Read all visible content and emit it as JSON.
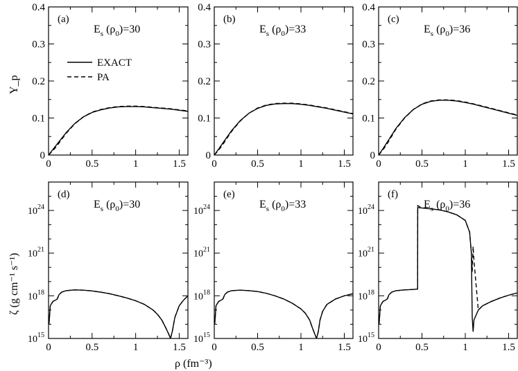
{
  "figure": {
    "xlabel": "ρ (fm⁻³)",
    "top_ylabel": "Y_p",
    "bottom_ylabel": "ζ (g cm⁻¹ s⁻¹)"
  },
  "legend": [
    {
      "name": "EXACT",
      "style": "solid"
    },
    {
      "name": "PA",
      "style": "dashed"
    }
  ],
  "colors": {
    "line": "#000000",
    "background": "#ffffff"
  },
  "chart_data": [
    {
      "panel": "(a)",
      "type": "line",
      "annotation": "Es (ρ0)=30",
      "xlim": [
        0,
        1.6
      ],
      "ylim": [
        0,
        0.4
      ],
      "yscale": "linear",
      "xticks": [
        "0",
        "0.5",
        "1",
        "1.5"
      ],
      "yticks": [
        "0",
        "0.1",
        "0.2",
        "0.3",
        "0.4"
      ],
      "series": [
        {
          "name": "EXACT",
          "x": [
            0,
            0.05,
            0.1,
            0.2,
            0.3,
            0.4,
            0.5,
            0.6,
            0.7,
            0.8,
            0.9,
            1.0,
            1.1,
            1.2,
            1.3,
            1.4,
            1.5,
            1.6
          ],
          "y": [
            0,
            0.015,
            0.03,
            0.06,
            0.085,
            0.103,
            0.115,
            0.122,
            0.127,
            0.13,
            0.131,
            0.131,
            0.13,
            0.128,
            0.126,
            0.124,
            0.121,
            0.118
          ]
        },
        {
          "name": "PA",
          "x": [
            0,
            0.05,
            0.1,
            0.2,
            0.3,
            0.4,
            0.5,
            0.6,
            0.7,
            0.8,
            0.9,
            1.0,
            1.1,
            1.2,
            1.3,
            1.4,
            1.5,
            1.6
          ],
          "y": [
            0,
            0.012,
            0.026,
            0.058,
            0.084,
            0.103,
            0.116,
            0.123,
            0.128,
            0.131,
            0.132,
            0.132,
            0.131,
            0.129,
            0.127,
            0.125,
            0.122,
            0.119
          ]
        }
      ]
    },
    {
      "panel": "(b)",
      "type": "line",
      "annotation": "Es (ρ0)=33",
      "xlim": [
        0,
        1.6
      ],
      "ylim": [
        0,
        0.4
      ],
      "yscale": "linear",
      "xticks": [
        "0",
        "0.5",
        "1",
        "1.5"
      ],
      "yticks": [
        "0",
        "0.1",
        "0.2",
        "0.3",
        "0.4"
      ],
      "series": [
        {
          "name": "EXACT",
          "x": [
            0,
            0.05,
            0.1,
            0.2,
            0.3,
            0.4,
            0.5,
            0.6,
            0.7,
            0.8,
            0.9,
            1.0,
            1.1,
            1.2,
            1.3,
            1.4,
            1.5,
            1.6
          ],
          "y": [
            0,
            0.016,
            0.033,
            0.066,
            0.093,
            0.113,
            0.126,
            0.134,
            0.138,
            0.139,
            0.139,
            0.137,
            0.134,
            0.13,
            0.126,
            0.121,
            0.116,
            0.111
          ]
        },
        {
          "name": "PA",
          "x": [
            0,
            0.05,
            0.1,
            0.2,
            0.3,
            0.4,
            0.5,
            0.6,
            0.7,
            0.8,
            0.9,
            1.0,
            1.1,
            1.2,
            1.3,
            1.4,
            1.5,
            1.6
          ],
          "y": [
            0,
            0.013,
            0.029,
            0.064,
            0.092,
            0.113,
            0.127,
            0.135,
            0.139,
            0.14,
            0.14,
            0.138,
            0.135,
            0.131,
            0.127,
            0.122,
            0.117,
            0.112
          ]
        }
      ]
    },
    {
      "panel": "(c)",
      "type": "line",
      "annotation": "Es (ρ0)=36",
      "xlim": [
        0,
        1.6
      ],
      "ylim": [
        0,
        0.4
      ],
      "yscale": "linear",
      "xticks": [
        "0",
        "0.5",
        "1",
        "1.5"
      ],
      "yticks": [
        "0",
        "0.1",
        "0.2",
        "0.3",
        "0.4"
      ],
      "series": [
        {
          "name": "EXACT",
          "x": [
            0,
            0.05,
            0.1,
            0.2,
            0.3,
            0.4,
            0.5,
            0.6,
            0.7,
            0.8,
            0.9,
            1.0,
            1.1,
            1.2,
            1.3,
            1.4,
            1.5,
            1.6
          ],
          "y": [
            0,
            0.017,
            0.035,
            0.072,
            0.101,
            0.123,
            0.137,
            0.145,
            0.148,
            0.148,
            0.146,
            0.142,
            0.137,
            0.131,
            0.125,
            0.119,
            0.113,
            0.107
          ]
        },
        {
          "name": "PA",
          "x": [
            0,
            0.05,
            0.1,
            0.2,
            0.3,
            0.4,
            0.5,
            0.6,
            0.7,
            0.8,
            0.9,
            1.0,
            1.1,
            1.2,
            1.3,
            1.4,
            1.5,
            1.6
          ],
          "y": [
            0,
            0.014,
            0.031,
            0.07,
            0.1,
            0.123,
            0.138,
            0.146,
            0.149,
            0.149,
            0.147,
            0.143,
            0.138,
            0.132,
            0.126,
            0.12,
            0.114,
            0.108
          ]
        }
      ]
    },
    {
      "panel": "(d)",
      "type": "line",
      "annotation": "Es (ρ0)=30",
      "xlim": [
        0,
        1.6
      ],
      "ylim": [
        1000000000000000.0,
        1e+26
      ],
      "yscale": "log",
      "xticks": [
        "0",
        "0.5",
        "1",
        "1.5"
      ],
      "yticks": [
        "10^15",
        "10^18",
        "10^21",
        "10^24"
      ],
      "series": [
        {
          "name": "EXACT",
          "x": [
            0.005,
            0.02,
            0.05,
            0.08,
            0.1,
            0.12,
            0.15,
            0.2,
            0.3,
            0.4,
            0.5,
            0.6,
            0.7,
            0.8,
            0.9,
            1.0,
            1.1,
            1.2,
            1.25,
            1.3,
            1.35,
            1.38,
            1.4,
            1.42,
            1.45,
            1.5,
            1.55,
            1.6
          ],
          "y": [
            1e+16,
            2e+17,
            4e+17,
            5e+17,
            6e+17,
            1.2e+18,
            1.8e+18,
            2.3e+18,
            2.6e+18,
            2.5e+18,
            2.2e+18,
            1.8e+18,
            1.4e+18,
            1e+18,
            7e+17,
            4.5e+17,
            2.5e+17,
            1e+17,
            5e+16,
            2e+16,
            5000000000000000.0,
            2000000000000000.0,
            1000000000000000.0,
            3000000000000000.0,
            3e+16,
            2e+17,
            5e+17,
            1e+18
          ]
        },
        {
          "name": "PA",
          "x": [
            0.005,
            0.02,
            0.05,
            0.08,
            0.1,
            0.12,
            0.15,
            0.2,
            0.3,
            0.4,
            0.5,
            0.6,
            0.7,
            0.8,
            0.9,
            1.0,
            1.1,
            1.2,
            1.25,
            1.3,
            1.35,
            1.38,
            1.4,
            1.42,
            1.45,
            1.5,
            1.55,
            1.6
          ],
          "y": [
            1e+16,
            2e+17,
            4e+17,
            5e+17,
            6e+17,
            1.2e+18,
            1.8e+18,
            2.3e+18,
            2.6e+18,
            2.5e+18,
            2.2e+18,
            1.8e+18,
            1.4e+18,
            1e+18,
            7e+17,
            4.5e+17,
            2.5e+17,
            1e+17,
            5e+16,
            2e+16,
            5000000000000000.0,
            2000000000000000.0,
            1000000000000000.0,
            3000000000000000.0,
            3e+16,
            2e+17,
            5e+17,
            1e+18
          ]
        }
      ]
    },
    {
      "panel": "(e)",
      "type": "line",
      "annotation": "Es (ρ0)=33",
      "xlim": [
        0,
        1.6
      ],
      "ylim": [
        1000000000000000.0,
        1e+26
      ],
      "yscale": "log",
      "xticks": [
        "0",
        "0.5",
        "1",
        "1.5"
      ],
      "yticks": [
        "10^15",
        "10^18",
        "10^21",
        "10^24"
      ],
      "series": [
        {
          "name": "EXACT",
          "x": [
            0.005,
            0.02,
            0.05,
            0.08,
            0.1,
            0.12,
            0.15,
            0.2,
            0.3,
            0.4,
            0.5,
            0.6,
            0.7,
            0.8,
            0.9,
            1.0,
            1.05,
            1.1,
            1.13,
            1.16,
            1.18,
            1.2,
            1.22,
            1.25,
            1.3,
            1.4,
            1.5,
            1.6
          ],
          "y": [
            1e+16,
            2e+17,
            4e+17,
            5e+17,
            6e+17,
            1.2e+18,
            1.8e+18,
            2.3e+18,
            2.5e+18,
            2.3e+18,
            2e+18,
            1.5e+18,
            1e+18,
            6e+17,
            3e+17,
            1.2e+17,
            6e+16,
            2e+16,
            6000000000000000.0,
            2000000000000000.0,
            1000000000000000.0,
            3000000000000000.0,
            2e+16,
            8e+16,
            2.5e+17,
            6e+17,
            1e+18,
            1.4e+18
          ]
        },
        {
          "name": "PA",
          "x": [
            0.005,
            0.02,
            0.05,
            0.08,
            0.1,
            0.12,
            0.15,
            0.2,
            0.3,
            0.4,
            0.5,
            0.6,
            0.7,
            0.8,
            0.9,
            1.0,
            1.05,
            1.1,
            1.13,
            1.16,
            1.18,
            1.2,
            1.22,
            1.25,
            1.3,
            1.4,
            1.5,
            1.6
          ],
          "y": [
            1e+16,
            2e+17,
            4e+17,
            5e+17,
            6e+17,
            1.2e+18,
            1.8e+18,
            2.3e+18,
            2.5e+18,
            2.3e+18,
            2e+18,
            1.5e+18,
            1e+18,
            6e+17,
            3e+17,
            1.2e+17,
            6e+16,
            2e+16,
            6000000000000000.0,
            2000000000000000.0,
            1000000000000000.0,
            3000000000000000.0,
            2e+16,
            8e+16,
            2.5e+17,
            6e+17,
            1e+18,
            1.4e+18
          ]
        }
      ]
    },
    {
      "panel": "(f)",
      "type": "line",
      "annotation": "Es (ρ0)=36",
      "xlim": [
        0,
        1.6
      ],
      "ylim": [
        1000000000000000.0,
        1e+26
      ],
      "yscale": "log",
      "xticks": [
        "0",
        "0.5",
        "1",
        "1.5"
      ],
      "yticks": [
        "10^15",
        "10^18",
        "10^21",
        "10^24"
      ],
      "series": [
        {
          "name": "EXACT",
          "x": [
            0.005,
            0.02,
            0.05,
            0.08,
            0.1,
            0.12,
            0.15,
            0.2,
            0.3,
            0.4,
            0.45,
            0.451,
            0.5,
            0.6,
            0.7,
            0.8,
            0.9,
            1.0,
            1.05,
            1.07,
            1.08,
            1.09,
            1.1,
            1.15,
            1.2,
            1.3,
            1.4,
            1.5,
            1.6
          ],
          "y": [
            1e+16,
            2e+17,
            4e+17,
            5e+17,
            6e+17,
            1.2e+18,
            1.8e+18,
            2.3e+18,
            2.6e+18,
            2.8e+18,
            3e+18,
            1.6e+24,
            1.5e+24,
            1.3e+24,
            1.1e+24,
            8e+23,
            5e+23,
            2e+23,
            3e+22,
            1e+21,
            3e+16,
            3000000000000000.0,
            2e+16,
            1e+17,
            2e+17,
            4e+17,
            7e+17,
            1.1e+18,
            1.6e+18
          ]
        },
        {
          "name": "PA",
          "x": [
            0.005,
            0.02,
            0.05,
            0.08,
            0.1,
            0.12,
            0.15,
            0.2,
            0.3,
            0.4,
            0.45,
            0.451,
            0.5,
            0.6,
            0.7,
            0.8,
            0.9,
            1.0,
            1.05,
            1.07,
            1.08,
            1.09,
            1.1,
            1.15,
            1.2,
            1.3,
            1.4,
            1.5,
            1.6
          ],
          "y": [
            1e+16,
            2e+17,
            4e+17,
            5e+17,
            6e+17,
            1.2e+18,
            1.8e+18,
            2.3e+18,
            2.6e+18,
            2.8e+18,
            3e+18,
            2.2e+24,
            1.5e+24,
            1.3e+24,
            1.1e+24,
            8e+23,
            5e+23,
            2e+23,
            3e+22,
            1e+21,
            5e+19,
            3e+21,
            3e+20,
            1e+17,
            2e+17,
            4e+17,
            7e+17,
            1.1e+18,
            1.6e+18
          ]
        }
      ]
    }
  ]
}
